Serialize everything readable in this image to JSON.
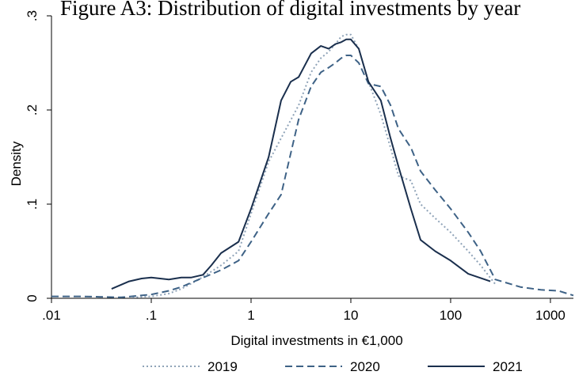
{
  "chart_data": {
    "type": "line",
    "title": "Figure A3: Distribution of digital investments by year",
    "xlabel": "Digital investments in €1,000",
    "ylabel": "Density",
    "x_scale": "log",
    "xlim": [
      0.01,
      1700
    ],
    "ylim": [
      0,
      0.3
    ],
    "x_ticks": [
      {
        "value": 0.01,
        "label": ".01"
      },
      {
        "value": 0.1,
        "label": ".1"
      },
      {
        "value": 1,
        "label": "1"
      },
      {
        "value": 10,
        "label": "10"
      },
      {
        "value": 100,
        "label": "100"
      },
      {
        "value": 1000,
        "label": "1000"
      }
    ],
    "y_ticks": [
      {
        "value": 0,
        "label": "0"
      },
      {
        "value": 0.1,
        "label": ".1"
      },
      {
        "value": 0.2,
        "label": ".2"
      },
      {
        "value": 0.3,
        "label": ".3"
      }
    ],
    "grid": false,
    "legend_position": "bottom",
    "series": [
      {
        "name": "2019",
        "color": "#8fa3b8",
        "dash": "2,3",
        "width": 2,
        "x": [
          0.065,
          0.1,
          0.15,
          0.2,
          0.3,
          0.5,
          0.75,
          1,
          1.5,
          2,
          3,
          4,
          5,
          6,
          7,
          8,
          9,
          10,
          12,
          15,
          20,
          25,
          30,
          40,
          50,
          70,
          100,
          150,
          200,
          280
        ],
        "y": [
          0.001,
          0.002,
          0.005,
          0.01,
          0.02,
          0.035,
          0.05,
          0.09,
          0.145,
          0.17,
          0.205,
          0.24,
          0.255,
          0.262,
          0.27,
          0.278,
          0.28,
          0.28,
          0.265,
          0.23,
          0.195,
          0.16,
          0.13,
          0.125,
          0.1,
          0.085,
          0.07,
          0.05,
          0.035,
          0.015
        ]
      },
      {
        "name": "2020",
        "color": "#3e6286",
        "dash": "9,5",
        "width": 2,
        "x": [
          0.01,
          0.02,
          0.05,
          0.1,
          0.15,
          0.2,
          0.3,
          0.5,
          0.75,
          1,
          1.5,
          2,
          3,
          4,
          5,
          6,
          7,
          8,
          9,
          10,
          12,
          15,
          20,
          25,
          30,
          40,
          50,
          70,
          100,
          150,
          200,
          280,
          500,
          800,
          1200,
          1700
        ],
        "y": [
          0.002,
          0.002,
          0.001,
          0.004,
          0.008,
          0.012,
          0.02,
          0.03,
          0.04,
          0.06,
          0.09,
          0.11,
          0.19,
          0.225,
          0.24,
          0.245,
          0.25,
          0.255,
          0.258,
          0.258,
          0.25,
          0.228,
          0.225,
          0.205,
          0.18,
          0.16,
          0.135,
          0.115,
          0.095,
          0.07,
          0.05,
          0.02,
          0.012,
          0.009,
          0.008,
          0.003
        ]
      },
      {
        "name": "2021",
        "color": "#1a2f4d",
        "dash": "",
        "width": 2,
        "x": [
          0.04,
          0.06,
          0.08,
          0.1,
          0.15,
          0.2,
          0.25,
          0.33,
          0.4,
          0.5,
          0.75,
          1,
          1.5,
          2,
          2.5,
          3,
          4,
          5,
          6,
          7,
          8,
          9,
          10,
          12,
          15,
          20,
          25,
          30,
          40,
          50,
          70,
          100,
          150,
          250
        ],
        "y": [
          0.01,
          0.018,
          0.021,
          0.022,
          0.02,
          0.022,
          0.022,
          0.025,
          0.035,
          0.048,
          0.06,
          0.095,
          0.15,
          0.21,
          0.23,
          0.235,
          0.26,
          0.268,
          0.265,
          0.27,
          0.272,
          0.275,
          0.275,
          0.265,
          0.23,
          0.21,
          0.17,
          0.14,
          0.095,
          0.062,
          0.05,
          0.04,
          0.026,
          0.018
        ]
      }
    ]
  }
}
